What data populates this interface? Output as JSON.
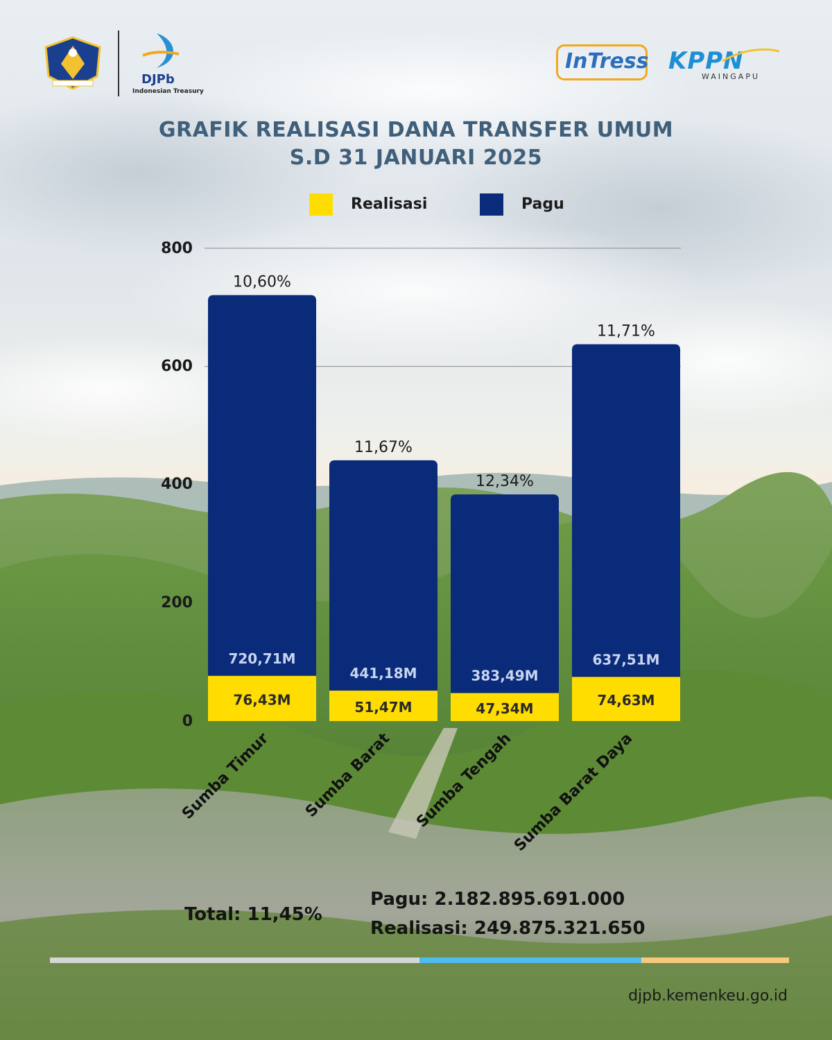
{
  "header": {
    "logos": {
      "kemenkeu": "kemenkeu-seal",
      "djpb_name": "DJPb",
      "djpb_sub": "Indonesian Treasury",
      "intress": "InTress",
      "kppn": "KPPN",
      "kppn_sub": "WAINGAPU"
    },
    "title_line1": "GRAFIK REALISASI DANA TRANSFER UMUM",
    "title_line2": "S.D 31 JANUARI 2025"
  },
  "colors": {
    "realisasi": "#FFDD00",
    "pagu": "#0A2A7A",
    "title": "#3F5F7A"
  },
  "chart_data": {
    "type": "bar",
    "stacked": true,
    "categories": [
      "Sumba Timur",
      "Sumba Barat",
      "Sumba Tengah",
      "Sumba Barat Daya"
    ],
    "series": [
      {
        "name": "Realisasi",
        "values": [
          76.43,
          51.47,
          47.34,
          74.63
        ],
        "labels": [
          "76,43M",
          "51,47M",
          "47,34M",
          "74,63M"
        ]
      },
      {
        "name": "Pagu",
        "values": [
          720.71,
          441.18,
          383.49,
          637.51
        ],
        "labels": [
          "720,71M",
          "441,18M",
          "383,49M",
          "637,51M"
        ]
      }
    ],
    "percent_labels": [
      "10,60%",
      "11,67%",
      "12,34%",
      "11,71%"
    ],
    "ylim": [
      0,
      800
    ],
    "yticks": [
      "0",
      "200",
      "400",
      "600",
      "800"
    ],
    "grid": true,
    "legend_placement": "top-center"
  },
  "summary": {
    "total": "Total: 11,45%",
    "pagu": "Pagu: 2.182.895.691.000",
    "realisasi": "Realisasi: 249.875.321.650"
  },
  "footer": {
    "url": "djpb.kemenkeu.go.id"
  }
}
